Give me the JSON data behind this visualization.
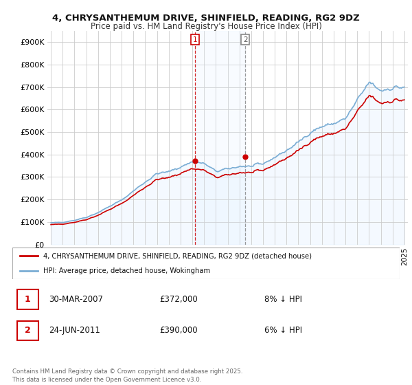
{
  "title": "4, CHRYSANTHEMUM DRIVE, SHINFIELD, READING, RG2 9DZ",
  "subtitle": "Price paid vs. HM Land Registry's House Price Index (HPI)",
  "purchase1_date": "30-MAR-2007",
  "purchase1_price": 372000,
  "purchase2_date": "24-JUN-2011",
  "purchase2_price": 390000,
  "purchase1_hpi_diff": "8% ↓ HPI",
  "purchase2_hpi_diff": "6% ↓ HPI",
  "legend_line1": "4, CHRYSANTHEMUM DRIVE, SHINFIELD, READING, RG2 9DZ (detached house)",
  "legend_line2": "HPI: Average price, detached house, Wokingham",
  "footnote": "Contains HM Land Registry data © Crown copyright and database right 2025.\nThis data is licensed under the Open Government Licence v3.0.",
  "price_color": "#cc0000",
  "hpi_color": "#7aadd4",
  "hpi_fill_color": "#ddeeff",
  "background_color": "#ffffff",
  "ylim": [
    0,
    950000
  ],
  "yticks": [
    0,
    100000,
    200000,
    300000,
    400000,
    500000,
    600000,
    700000,
    800000,
    900000
  ],
  "ytick_labels": [
    "£0",
    "£100K",
    "£200K",
    "£300K",
    "£400K",
    "£500K",
    "£600K",
    "£700K",
    "£800K",
    "£900K"
  ],
  "purchase1_x": 2007.25,
  "purchase2_x": 2011.5,
  "xlim_min": 1994.7,
  "xlim_max": 2025.3
}
